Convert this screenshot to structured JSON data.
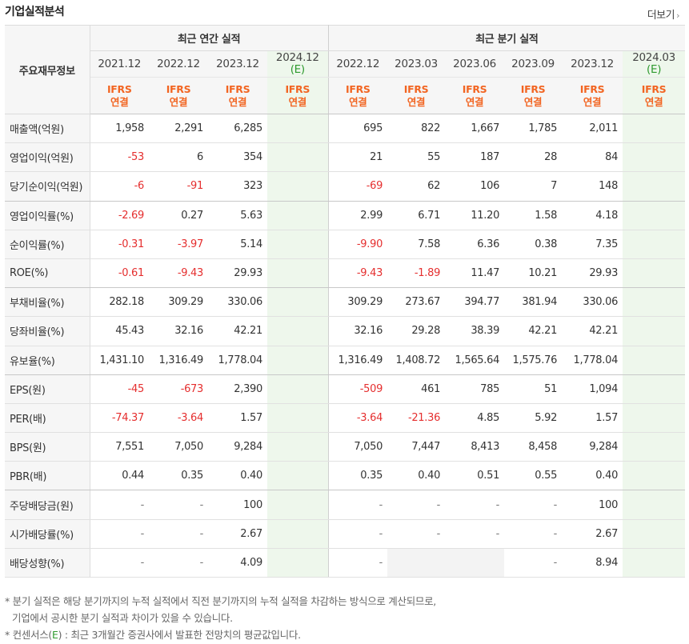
{
  "title": "기업실적분석",
  "more_label": "더보기",
  "header": {
    "row_label": "주요재무정보",
    "annual_group": "최근 연간 실적",
    "quarter_group": "최근 분기 실적",
    "annual_periods": [
      {
        "label": "2021.12",
        "estimate": false
      },
      {
        "label": "2022.12",
        "estimate": false
      },
      {
        "label": "2023.12",
        "estimate": false
      },
      {
        "label": "2024.12",
        "estimate": true,
        "estimate_mark": "(E)"
      }
    ],
    "quarter_periods": [
      {
        "label": "2022.12",
        "estimate": false
      },
      {
        "label": "2023.03",
        "estimate": false
      },
      {
        "label": "2023.06",
        "estimate": false
      },
      {
        "label": "2023.09",
        "estimate": false
      },
      {
        "label": "2023.12",
        "estimate": false
      },
      {
        "label": "2024.03",
        "estimate": true,
        "estimate_mark": "(E)"
      }
    ],
    "standard_line1": "IFRS",
    "standard_line2": "연결"
  },
  "rows": [
    {
      "label": "매출액(억원)",
      "annual": [
        "1,958",
        "2,291",
        "6,285",
        ""
      ],
      "quarter": [
        "695",
        "822",
        "1,667",
        "1,785",
        "2,011",
        ""
      ]
    },
    {
      "label": "영업이익(억원)",
      "annual": [
        "-53",
        "6",
        "354",
        ""
      ],
      "quarter": [
        "21",
        "55",
        "187",
        "28",
        "84",
        ""
      ]
    },
    {
      "label": "당기순이익(억원)",
      "annual": [
        "-6",
        "-91",
        "323",
        ""
      ],
      "quarter": [
        "-69",
        "62",
        "106",
        "7",
        "148",
        ""
      ]
    },
    {
      "label": "영업이익률(%)",
      "annual": [
        "-2.69",
        "0.27",
        "5.63",
        ""
      ],
      "quarter": [
        "2.99",
        "6.71",
        "11.20",
        "1.58",
        "4.18",
        ""
      ]
    },
    {
      "label": "순이익률(%)",
      "annual": [
        "-0.31",
        "-3.97",
        "5.14",
        ""
      ],
      "quarter": [
        "-9.90",
        "7.58",
        "6.36",
        "0.38",
        "7.35",
        ""
      ]
    },
    {
      "label": "ROE(%)",
      "annual": [
        "-0.61",
        "-9.43",
        "29.93",
        ""
      ],
      "quarter": [
        "-9.43",
        "-1.89",
        "11.47",
        "10.21",
        "29.93",
        ""
      ]
    },
    {
      "label": "부채비율(%)",
      "annual": [
        "282.18",
        "309.29",
        "330.06",
        ""
      ],
      "quarter": [
        "309.29",
        "273.67",
        "394.77",
        "381.94",
        "330.06",
        ""
      ]
    },
    {
      "label": "당좌비율(%)",
      "annual": [
        "45.43",
        "32.16",
        "42.21",
        ""
      ],
      "quarter": [
        "32.16",
        "29.28",
        "38.39",
        "42.21",
        "42.21",
        ""
      ]
    },
    {
      "label": "유보율(%)",
      "annual": [
        "1,431.10",
        "1,316.49",
        "1,778.04",
        ""
      ],
      "quarter": [
        "1,316.49",
        "1,408.72",
        "1,565.64",
        "1,575.76",
        "1,778.04",
        ""
      ]
    },
    {
      "label": "EPS(원)",
      "annual": [
        "-45",
        "-673",
        "2,390",
        ""
      ],
      "quarter": [
        "-509",
        "461",
        "785",
        "51",
        "1,094",
        ""
      ]
    },
    {
      "label": "PER(배)",
      "annual": [
        "-74.37",
        "-3.64",
        "1.57",
        ""
      ],
      "quarter": [
        "-3.64",
        "-21.36",
        "4.85",
        "5.92",
        "1.57",
        ""
      ]
    },
    {
      "label": "BPS(원)",
      "annual": [
        "7,551",
        "7,050",
        "9,284",
        ""
      ],
      "quarter": [
        "7,050",
        "7,447",
        "8,413",
        "8,458",
        "9,284",
        ""
      ]
    },
    {
      "label": "PBR(배)",
      "annual": [
        "0.44",
        "0.35",
        "0.40",
        ""
      ],
      "quarter": [
        "0.35",
        "0.40",
        "0.51",
        "0.55",
        "0.40",
        ""
      ]
    },
    {
      "label": "주당배당금(원)",
      "annual": [
        "-",
        "-",
        "100",
        ""
      ],
      "quarter": [
        "-",
        "-",
        "-",
        "-",
        "100",
        ""
      ]
    },
    {
      "label": "시가배당률(%)",
      "annual": [
        "-",
        "-",
        "2.67",
        ""
      ],
      "quarter": [
        "-",
        "-",
        "-",
        "-",
        "2.67",
        ""
      ]
    },
    {
      "label": "배당성향(%)",
      "annual": [
        "-",
        "-",
        "4.09",
        ""
      ],
      "quarter": [
        "-",
        "",
        "",
        "-",
        "8.94",
        ""
      ]
    }
  ],
  "notes": {
    "line1": "* 분기 실적은 해당 분기까지의 누적 실적에서 직전 분기까지의 누적 실적을 차감하는 방식으로 계산되므로,",
    "line2": "기업에서 공시한 분기 실적과 차이가 있을 수 있습니다.",
    "line3_prefix": "* 컨센서스(",
    "line3_mark": "E",
    "line3_suffix": ") : 최근 3개월간 증권사에서 발표한 전망치의 평균값입니다."
  },
  "colors": {
    "negative": "#e52e2e",
    "standard_label": "#f26522",
    "estimate_bg": "#eef7ec",
    "estimate_text": "#2f9a2f"
  }
}
